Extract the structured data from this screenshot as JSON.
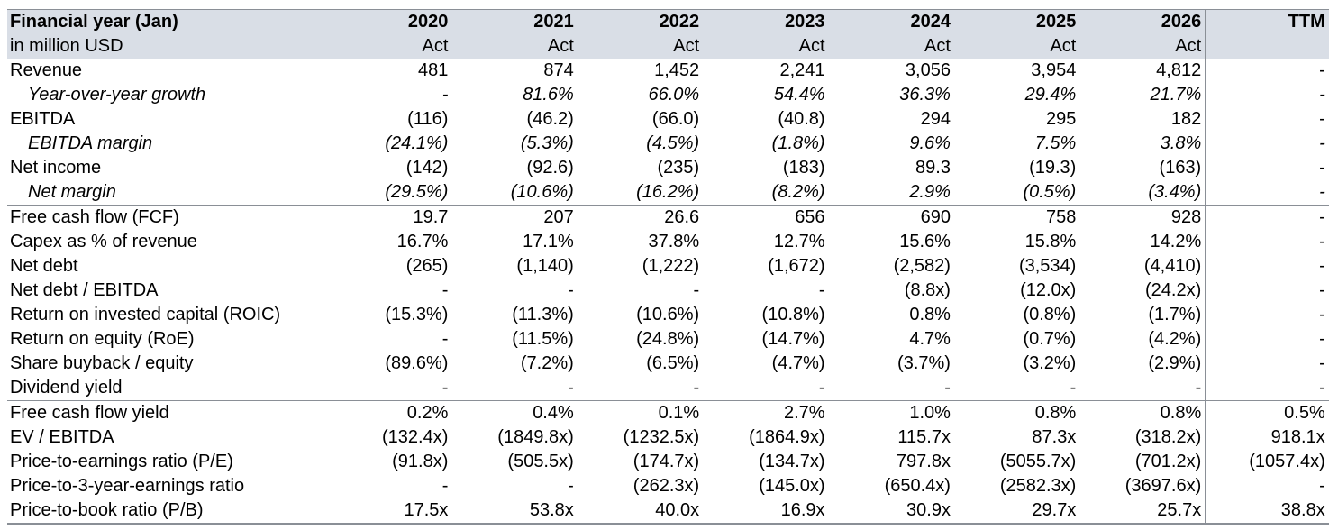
{
  "header": {
    "title": "Financial year (Jan)",
    "subtitle": "in million USD",
    "years": [
      "2020",
      "2021",
      "2022",
      "2023",
      "2024",
      "2025",
      "2026"
    ],
    "basis": [
      "Act",
      "Act",
      "Act",
      "Act",
      "Act",
      "Act",
      "Act"
    ],
    "ttm_label": "TTM",
    "ttm_basis": ""
  },
  "rows": [
    {
      "label": "Revenue",
      "values": [
        "481",
        "874",
        "1,452",
        "2,241",
        "3,056",
        "3,954",
        "4,812"
      ],
      "ttm": "-"
    },
    {
      "label": "Year-over-year growth",
      "values": [
        "-",
        "81.6%",
        "66.0%",
        "54.4%",
        "36.3%",
        "29.4%",
        "21.7%"
      ],
      "ttm": "-"
    },
    {
      "label": "EBITDA",
      "values": [
        "(116)",
        "(46.2)",
        "(66.0)",
        "(40.8)",
        "294",
        "295",
        "182"
      ],
      "ttm": "-"
    },
    {
      "label": "EBITDA margin",
      "values": [
        "(24.1%)",
        "(5.3%)",
        "(4.5%)",
        "(1.8%)",
        "9.6%",
        "7.5%",
        "3.8%"
      ],
      "ttm": "-"
    },
    {
      "label": "Net income",
      "values": [
        "(142)",
        "(92.6)",
        "(235)",
        "(183)",
        "89.3",
        "(19.3)",
        "(163)"
      ],
      "ttm": "-"
    },
    {
      "label": "Net margin",
      "values": [
        "(29.5%)",
        "(10.6%)",
        "(16.2%)",
        "(8.2%)",
        "2.9%",
        "(0.5%)",
        "(3.4%)"
      ],
      "ttm": "-"
    },
    {
      "label": "Free cash flow (FCF)",
      "values": [
        "19.7",
        "207",
        "26.6",
        "656",
        "690",
        "758",
        "928"
      ],
      "ttm": "-"
    },
    {
      "label": "Capex as % of revenue",
      "values": [
        "16.7%",
        "17.1%",
        "37.8%",
        "12.7%",
        "15.6%",
        "15.8%",
        "14.2%"
      ],
      "ttm": "-"
    },
    {
      "label": "Net debt",
      "values": [
        "(265)",
        "(1,140)",
        "(1,222)",
        "(1,672)",
        "(2,582)",
        "(3,534)",
        "(4,410)"
      ],
      "ttm": "-"
    },
    {
      "label": "Net debt / EBITDA",
      "values": [
        "-",
        "-",
        "-",
        "-",
        "(8.8x)",
        "(12.0x)",
        "(24.2x)"
      ],
      "ttm": "-"
    },
    {
      "label": "Return on invested capital (ROIC)",
      "values": [
        "(15.3%)",
        "(11.3%)",
        "(10.6%)",
        "(10.8%)",
        "0.8%",
        "(0.8%)",
        "(1.7%)"
      ],
      "ttm": "-"
    },
    {
      "label": "Return on equity (RoE)",
      "values": [
        "-",
        "(11.5%)",
        "(24.8%)",
        "(14.7%)",
        "4.7%",
        "(0.7%)",
        "(4.2%)"
      ],
      "ttm": "-"
    },
    {
      "label": "Share buyback / equity",
      "values": [
        "(89.6%)",
        "(7.2%)",
        "(6.5%)",
        "(4.7%)",
        "(3.7%)",
        "(3.2%)",
        "(2.9%)"
      ],
      "ttm": "-"
    },
    {
      "label": "Dividend yield",
      "values": [
        "-",
        "-",
        "-",
        "-",
        "-",
        "-",
        "-"
      ],
      "ttm": "-"
    },
    {
      "label": "Free cash flow yield",
      "values": [
        "0.2%",
        "0.4%",
        "0.1%",
        "2.7%",
        "1.0%",
        "0.8%",
        "0.8%"
      ],
      "ttm": "0.5%"
    },
    {
      "label": "EV / EBITDA",
      "values": [
        "(132.4x)",
        "(1849.8x)",
        "(1232.5x)",
        "(1864.9x)",
        "115.7x",
        "87.3x",
        "(318.2x)"
      ],
      "ttm": "918.1x"
    },
    {
      "label": "Price-to-earnings ratio (P/E)",
      "values": [
        "(91.8x)",
        "(505.5x)",
        "(174.7x)",
        "(134.7x)",
        "797.8x",
        "(5055.7x)",
        "(701.2x)"
      ],
      "ttm": "(1057.4x)"
    },
    {
      "label": "Price-to-3-year-earnings ratio",
      "values": [
        "-",
        "-",
        "(262.3x)",
        "(145.0x)",
        "(650.4x)",
        "(2582.3x)",
        "(3697.6x)"
      ],
      "ttm": "-"
    },
    {
      "label": "Price-to-book ratio (P/B)",
      "values": [
        "17.5x",
        "53.8x",
        "40.0x",
        "16.9x",
        "30.9x",
        "29.7x",
        "25.7x"
      ],
      "ttm": "38.8x"
    }
  ]
}
